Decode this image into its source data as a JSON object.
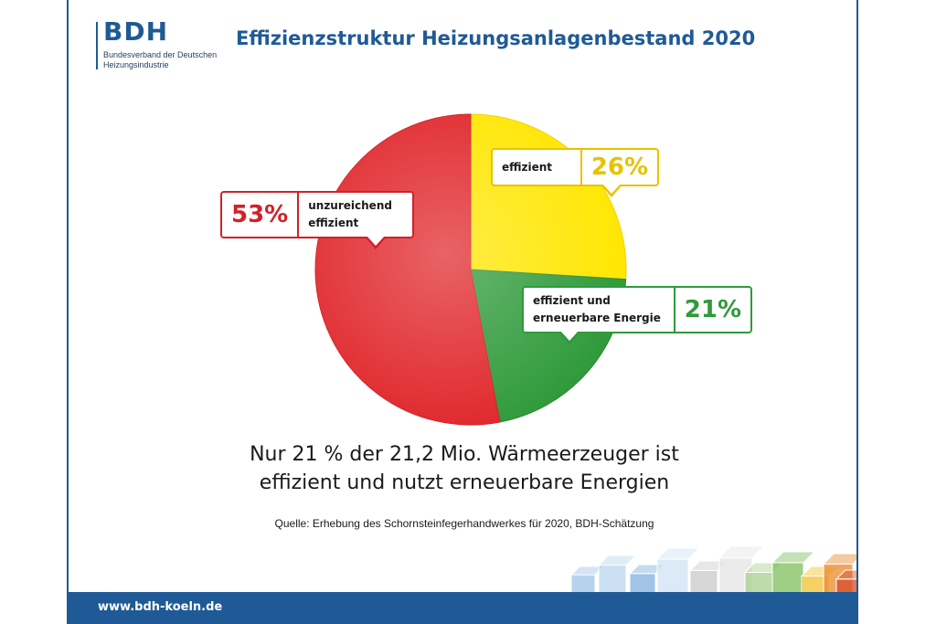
{
  "logo": {
    "name": "BDH",
    "subtitle": "Bundesverband der Deutschen Heizungsindustrie"
  },
  "title": "Effizienzstruktur Heizungsanlagenbestand 2020",
  "chart_data": {
    "type": "pie",
    "title": "Effizienzstruktur Heizungsanlagenbestand 2020",
    "slices": [
      {
        "label": "effizient",
        "value": 26,
        "display": "26%",
        "color": "#ffe600",
        "edge": "#f2d100"
      },
      {
        "label": "effizient und erneuerbare Energie",
        "value": 21,
        "display": "21%",
        "color": "#2f9a3a",
        "edge": "#2a8a34"
      },
      {
        "label": "unzureichend effizient",
        "value": 53,
        "display": "53%",
        "color": "#e0262b",
        "edge": "#d21e24"
      }
    ]
  },
  "callouts": {
    "effizient": {
      "text": "effizient",
      "pct": "26%",
      "color": "#e7c200"
    },
    "erneuerbar": {
      "line1": "effizient und",
      "line2": "erneuerbare Energie",
      "pct": "21%",
      "color": "#2f9a3a"
    },
    "unzureichend": {
      "line1": "unzureichend",
      "line2": "effizient",
      "pct": "53%",
      "color": "#d42028"
    }
  },
  "headline": {
    "line1": "Nur 21 % der 21,2 Mio. Wärmeerzeuger ist",
    "line2": "effizient und nutzt erneuerbare Energien"
  },
  "source": "Quelle: Erhebung des Schornsteinfegerhandwerkes für 2020, BDH-Schätzung",
  "footer": {
    "url": "www.bdh-koeln.de"
  },
  "colors": {
    "brand": "#1f5a96"
  }
}
